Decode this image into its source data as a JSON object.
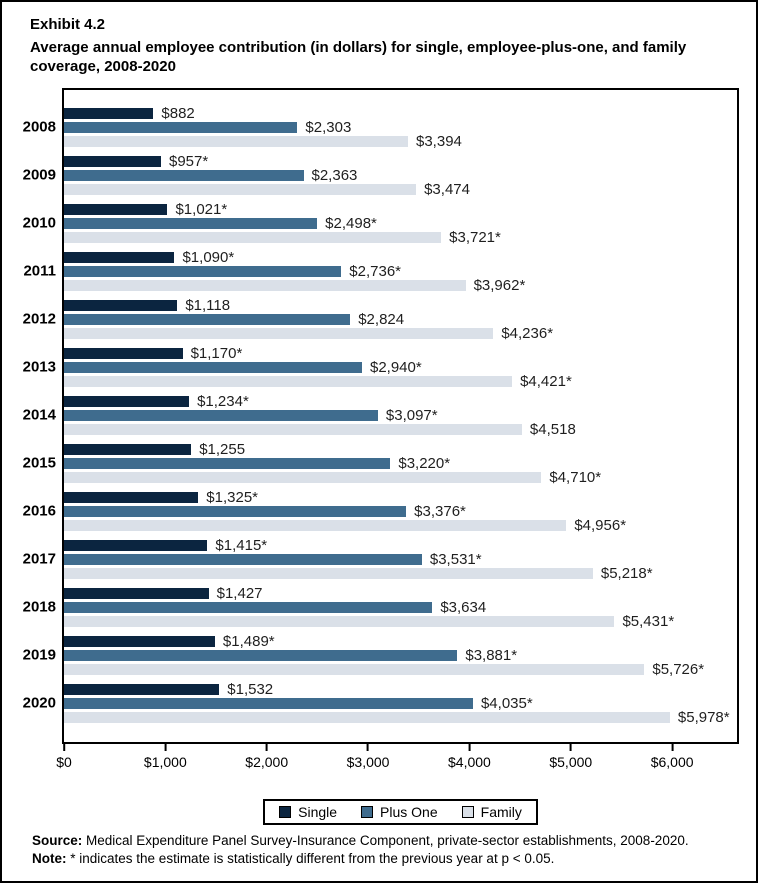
{
  "header": {
    "exhibit": "Exhibit 4.2",
    "title_line1": "Average annual employee contribution (in dollars) for single, employee-plus-one, and family",
    "title_line2": "coverage, 2008-2020"
  },
  "chart_data": {
    "type": "bar",
    "orientation": "horizontal",
    "title": "Average annual employee contribution (in dollars) for single, employee-plus-one, and family coverage, 2008-2020",
    "xlabel": "",
    "ylabel": "",
    "grid": false,
    "legend_position": "bottom",
    "xmax": 6640,
    "categories": [
      "2008",
      "2009",
      "2010",
      "2011",
      "2012",
      "2013",
      "2014",
      "2015",
      "2016",
      "2017",
      "2018",
      "2019",
      "2020"
    ],
    "series": [
      {
        "name": "Single",
        "slug": "single",
        "color": "#0b2540",
        "values": [
          882,
          957,
          1021,
          1090,
          1118,
          1170,
          1234,
          1255,
          1325,
          1415,
          1427,
          1489,
          1532
        ],
        "labels": [
          "$882",
          "$957*",
          "$1,021*",
          "$1,090*",
          "$1,118",
          "$1,170*",
          "$1,234*",
          "$1,255",
          "$1,325*",
          "$1,415*",
          "$1,427",
          "$1,489*",
          "$1,532"
        ]
      },
      {
        "name": "Plus One",
        "slug": "plus-one",
        "color": "#3f6c8e",
        "values": [
          2303,
          2363,
          2498,
          2736,
          2824,
          2940,
          3097,
          3220,
          3376,
          3531,
          3634,
          3881,
          4035
        ],
        "labels": [
          "$2,303",
          "$2,363",
          "$2,498*",
          "$2,736*",
          "$2,824",
          "$2,940*",
          "$3,097*",
          "$3,220*",
          "$3,376*",
          "$3,531*",
          "$3,634",
          "$3,881*",
          "$4,035*"
        ]
      },
      {
        "name": "Family",
        "slug": "family",
        "color": "#dae0e8",
        "values": [
          3394,
          3474,
          3721,
          3962,
          4236,
          4421,
          4518,
          4710,
          4956,
          5218,
          5431,
          5726,
          5978
        ],
        "labels": [
          "$3,394",
          "$3,474",
          "$3,721*",
          "$3,962*",
          "$4,236*",
          "$4,421*",
          "$4,518",
          "$4,710*",
          "$4,956*",
          "$5,218*",
          "$5,431*",
          "$5,726*",
          "$5,978*"
        ]
      }
    ],
    "axis_ticks": [
      {
        "value": 0,
        "label": "$0"
      },
      {
        "value": 1000,
        "label": "$1,000"
      },
      {
        "value": 2000,
        "label": "$2,000"
      },
      {
        "value": 3000,
        "label": "$3,000"
      },
      {
        "value": 4000,
        "label": "$4,000"
      },
      {
        "value": 5000,
        "label": "$5,000"
      },
      {
        "value": 6000,
        "label": "$6,000"
      }
    ]
  },
  "legend": {
    "items": [
      {
        "label": "Single",
        "slug": "single",
        "color": "#0b2540"
      },
      {
        "label": "Plus One",
        "slug": "plus-one",
        "color": "#3f6c8e"
      },
      {
        "label": "Family",
        "slug": "family",
        "color": "#dae0e8"
      }
    ]
  },
  "footer": {
    "source_label": "Source:",
    "source_text": " Medical Expenditure Panel Survey-Insurance Component, private-sector establishments, 2008-2020.",
    "note_label": "Note:",
    "note_text": " * indicates the estimate is statistically different from the previous year at p < 0.05."
  }
}
